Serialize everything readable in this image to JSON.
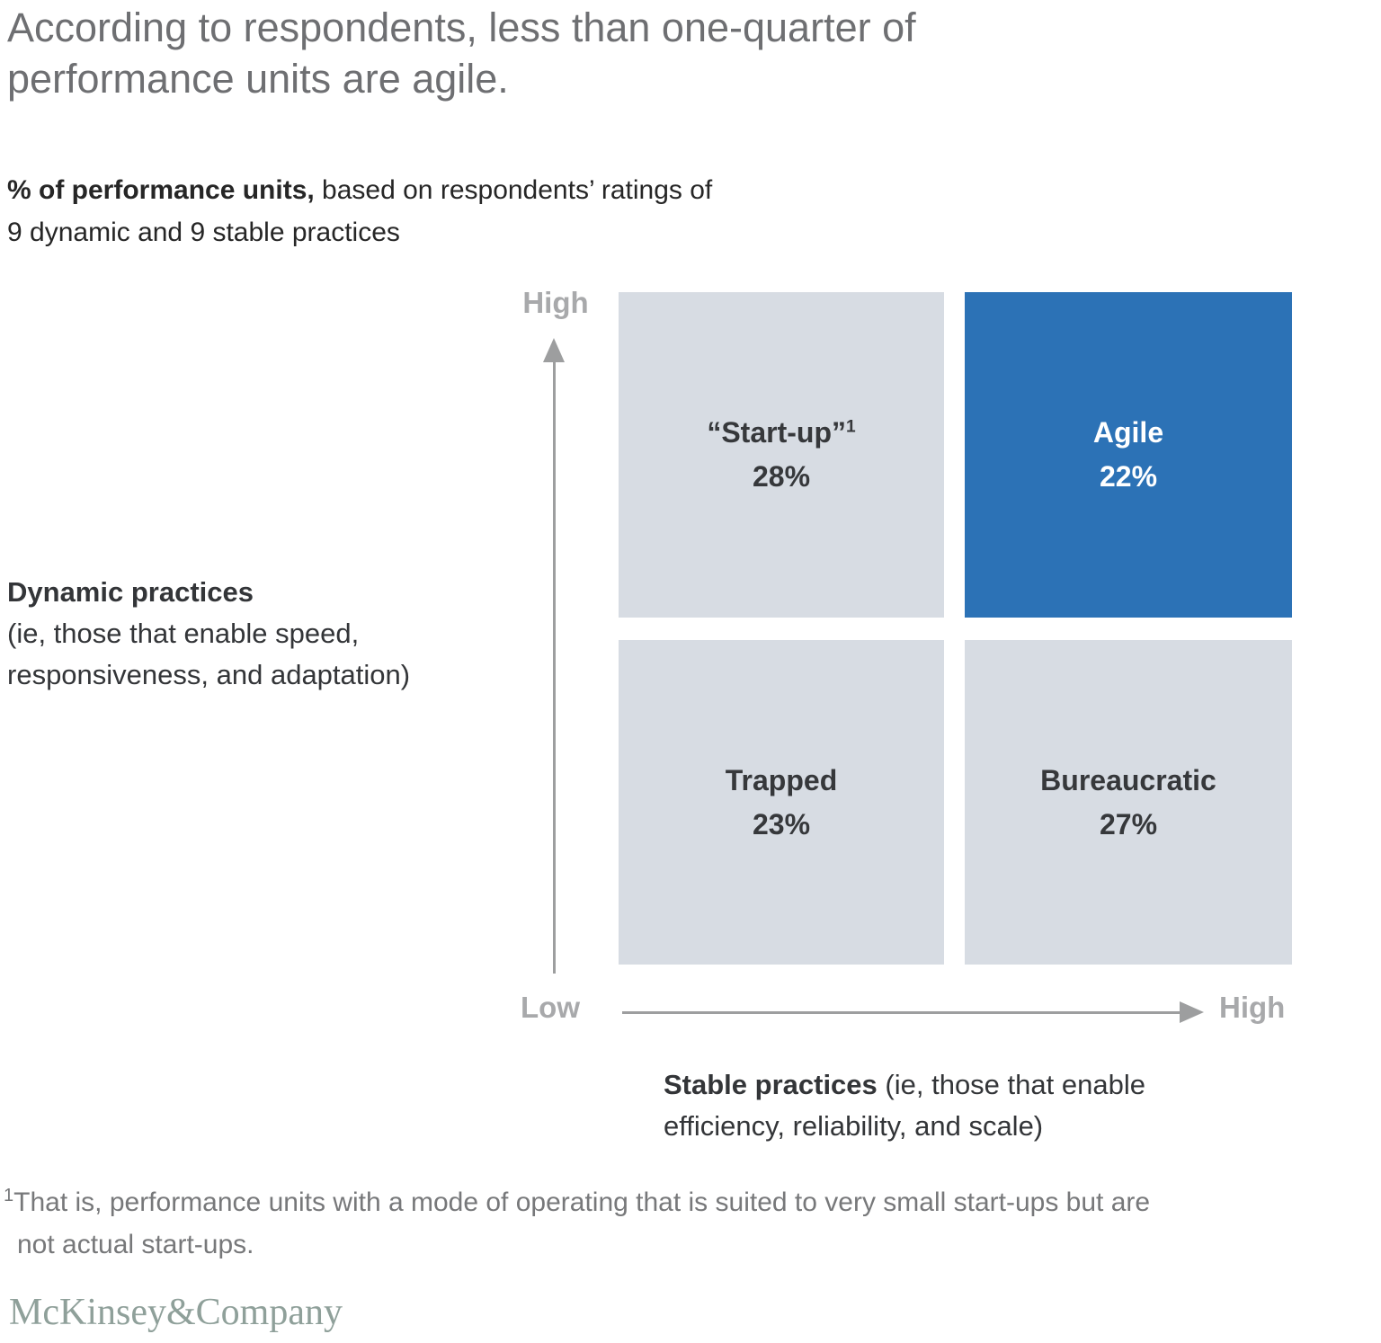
{
  "header": {
    "title_line1": "According to respondents, less than one-quarter of",
    "title_line2": "performance units are agile.",
    "subtitle_bold": "% of performance units,",
    "subtitle_rest": " based on respondents’ ratings of",
    "subtitle_line2": "9 dynamic and 9 stable practices"
  },
  "axes": {
    "y_high": "High",
    "origin_low": "Low",
    "x_high": "High"
  },
  "y_axis_title": {
    "bold": "Dynamic practices",
    "line2": "(ie, those that enable speed,",
    "line3": "responsiveness, and adaptation)"
  },
  "x_axis_title": {
    "bold": "Stable practices",
    "rest": " (ie, those that enable",
    "line2": "efficiency, reliability, and scale)"
  },
  "chart_data": {
    "type": "quadrant-matrix",
    "title": "% of performance units, based on respondents’ ratings of 9 dynamic and 9 stable practices",
    "xlabel": "Stable practices (ie, those that enable efficiency, reliability, and scale)",
    "ylabel": "Dynamic practices (ie, those that enable speed, responsiveness, and adaptation)",
    "x_range": [
      "Low",
      "High"
    ],
    "y_range": [
      "Low",
      "High"
    ],
    "quadrants": [
      {
        "label": "“Start-up”",
        "sup": "1",
        "value": 28,
        "value_label": "28%",
        "x": "low",
        "y": "high",
        "highlighted": false
      },
      {
        "label": "Agile",
        "value": 22,
        "value_label": "22%",
        "x": "high",
        "y": "high",
        "highlighted": true
      },
      {
        "label": "Trapped",
        "value": 23,
        "value_label": "23%",
        "x": "low",
        "y": "low",
        "highlighted": false
      },
      {
        "label": "Bureaucratic",
        "value": 27,
        "value_label": "27%",
        "x": "high",
        "y": "low",
        "highlighted": false
      }
    ]
  },
  "footnote": {
    "sup": "1",
    "line1": "That is, performance units with a mode of operating that is suited to very small start-ups but are",
    "line2": "not actual start-ups."
  },
  "logo": "McKinsey&Company",
  "colors": {
    "highlight_blue": "#2C72B6",
    "quadrant_gray": "#D7DCE3",
    "axis_gray": "#9D9E9F",
    "axis_label_gray": "#A8A9AB",
    "title_gray": "#6E6F72",
    "text_dark": "#333538",
    "footnote_gray": "#77787A",
    "logo_gray": "#8FA09A"
  }
}
